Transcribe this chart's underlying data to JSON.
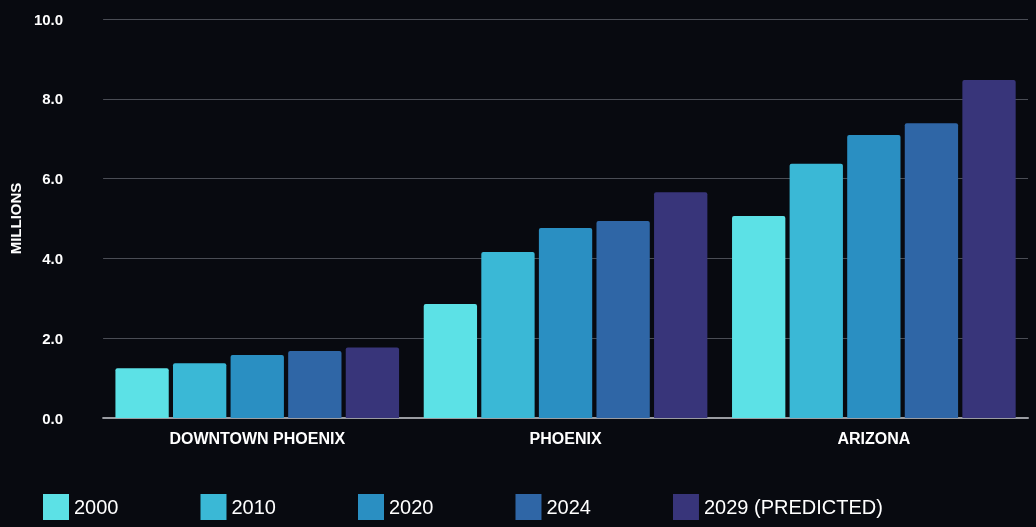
{
  "chart_data": {
    "type": "bar",
    "ylabel": "MILLIONS",
    "categories": [
      "DOWNTOWN PHOENIX",
      "PHOENIX",
      "ARIZONA"
    ],
    "series": [
      {
        "name": "2000",
        "color": "#5ce1e6",
        "values": [
          1.25,
          2.86,
          5.06
        ]
      },
      {
        "name": "2010",
        "color": "#3ab8d6",
        "values": [
          1.37,
          4.16,
          6.37
        ]
      },
      {
        "name": "2020",
        "color": "#2a8fc2",
        "values": [
          1.58,
          4.76,
          7.09
        ]
      },
      {
        "name": "2024",
        "color": "#2f66a6",
        "values": [
          1.68,
          4.94,
          7.39
        ]
      },
      {
        "name": "2029 (PREDICTED)",
        "color": "#38357a",
        "values": [
          1.77,
          5.66,
          8.47
        ]
      }
    ],
    "ylim": [
      0,
      10
    ],
    "yticks": [
      {
        "value": 0,
        "label": "0.0"
      },
      {
        "value": 2,
        "label": "2.0"
      },
      {
        "value": 4,
        "label": "4.0"
      },
      {
        "value": 6,
        "label": "6.0"
      },
      {
        "value": 8,
        "label": "8.0"
      },
      {
        "value": 10,
        "label": "10.0"
      }
    ],
    "grid": "y",
    "legend": "bottom"
  }
}
